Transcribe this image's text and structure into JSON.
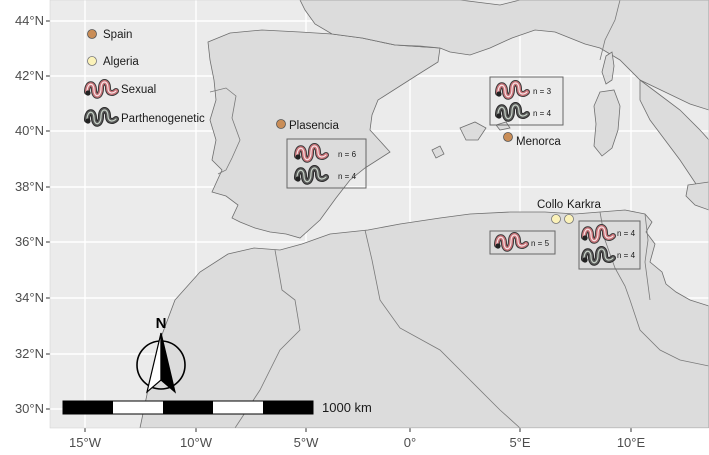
{
  "axes": {
    "y_ticks": [
      "44°N",
      "42°N",
      "40°N",
      "38°N",
      "36°N",
      "34°N",
      "32°N",
      "30°N"
    ],
    "x_ticks": [
      "15°W",
      "10°W",
      "5°W",
      "0°",
      "5°E",
      "10°E"
    ]
  },
  "legend": {
    "spain": "Spain",
    "algeria": "Algeria",
    "sexual": "Sexual",
    "parthenogenetic": "Parthenogenetic"
  },
  "colors": {
    "ocean": "#ebebeb",
    "land": "#dcdcdc",
    "spain_point": "#c98d57",
    "algeria_point": "#fbf2b9",
    "sexual_worm": "#c9747a",
    "parthenogenetic_worm": "#4f4f4f"
  },
  "sites": {
    "plasencia": "Plasencia",
    "menorca": "Menorca",
    "collo": "Collo",
    "karkra": "Karkra"
  },
  "insets": {
    "plasencia": {
      "sexual_n": "n = 6",
      "parth_n": "n = 4"
    },
    "menorca": {
      "sexual_n": "n = 3",
      "parth_n": "n = 4"
    },
    "collo": {
      "sexual_n": "n = 5"
    },
    "karkra": {
      "sexual_n": "n = 4",
      "parth_n": "n = 4"
    }
  },
  "scale_bar": {
    "label": "1000 km"
  },
  "north_arrow": {
    "label": "N"
  }
}
